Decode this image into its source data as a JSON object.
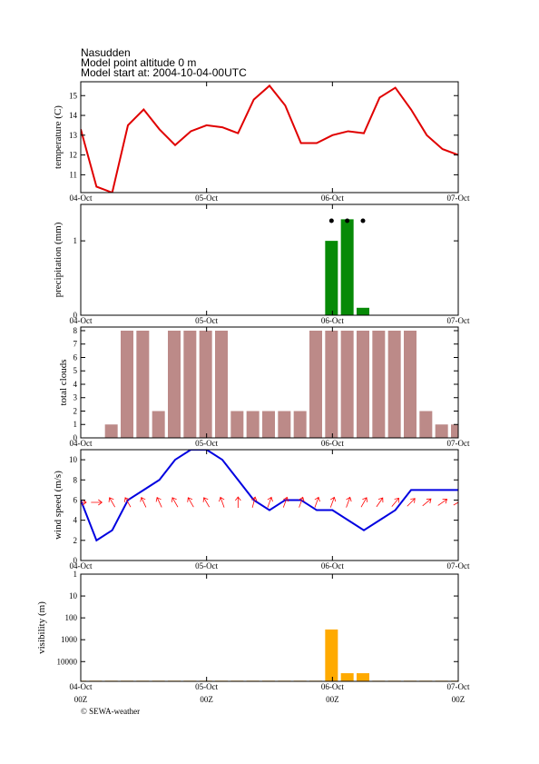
{
  "header": {
    "location": "Nasudden",
    "altitude": "Model point altitude  0 m",
    "model_start": "Model start at: 2004-10-04-00UTC"
  },
  "footer": {
    "hour_labels": [
      "00Z",
      "00Z",
      "00Z",
      "00Z"
    ],
    "copyright": "© SEWA-weather"
  },
  "chart_data": [
    {
      "type": "line",
      "ylabel": "temperature (C)",
      "color": "#e00000",
      "x": [
        0,
        3,
        6,
        9,
        12,
        15,
        18,
        21,
        24,
        27,
        30,
        33,
        36,
        39,
        42,
        45,
        48,
        51,
        54,
        57,
        60,
        63,
        66,
        69,
        72
      ],
      "values": [
        13.3,
        10.4,
        10.1,
        13.5,
        14.3,
        13.3,
        12.5,
        13.2,
        13.5,
        13.4,
        13.1,
        14.8,
        15.5,
        14.5,
        12.6,
        12.6,
        13.0,
        13.2,
        13.1,
        14.9,
        15.4,
        14.3,
        13.0,
        12.3,
        12.0
      ],
      "xlim": [
        0,
        72
      ],
      "xticks": [
        {
          "value": 0,
          "label": "04-Oct"
        },
        {
          "value": 24,
          "label": "05-Oct"
        },
        {
          "value": 48,
          "label": "06-Oct"
        },
        {
          "value": 72,
          "label": "07-Oct"
        }
      ],
      "ylim": [
        10.1,
        15.7
      ],
      "yticks": [
        11,
        12,
        13,
        14,
        15
      ]
    },
    {
      "type": "bar",
      "ylabel": "precipitation (mm)",
      "color": "#078a07",
      "x": [
        0,
        3,
        6,
        9,
        12,
        15,
        18,
        21,
        24,
        27,
        30,
        33,
        36,
        39,
        42,
        45,
        48,
        51,
        54,
        57,
        60,
        63,
        66,
        69,
        72
      ],
      "values": [
        0,
        0,
        0,
        0,
        0,
        0,
        0,
        0,
        0,
        0,
        0,
        0,
        0,
        0,
        0,
        0,
        1.0,
        1.29,
        0.1,
        0,
        0,
        0,
        0,
        0,
        0
      ],
      "xlim": [
        0,
        72
      ],
      "xticks": [
        {
          "value": 0,
          "label": "04-Oct"
        },
        {
          "value": 24,
          "label": "05-Oct"
        },
        {
          "value": 48,
          "label": "06-Oct"
        },
        {
          "value": 72,
          "label": "07-Oct"
        }
      ],
      "ylim": [
        0,
        1.49
      ],
      "yticks": [
        0,
        1
      ]
    },
    {
      "type": "bar",
      "ylabel": "total clouds",
      "color": "#bc8a88",
      "x": [
        0,
        3,
        6,
        9,
        12,
        15,
        18,
        21,
        24,
        27,
        30,
        33,
        36,
        39,
        42,
        45,
        48,
        51,
        54,
        57,
        60,
        63,
        66,
        69,
        72
      ],
      "values": [
        0,
        0,
        1,
        8,
        8,
        2,
        8,
        8,
        8,
        8,
        2,
        2,
        2,
        2,
        2,
        8,
        8,
        8,
        8,
        8,
        8,
        8,
        2,
        1,
        1
      ],
      "xlim": [
        0,
        72
      ],
      "xticks": [
        {
          "value": 0,
          "label": "04-Oct"
        },
        {
          "value": 24,
          "label": "05-Oct"
        },
        {
          "value": 48,
          "label": "06-Oct"
        },
        {
          "value": 72,
          "label": "07-Oct"
        }
      ],
      "ylim": [
        0,
        8.27
      ],
      "yticks": [
        0,
        1,
        2,
        3,
        4,
        5,
        6,
        7,
        8
      ]
    },
    {
      "type": "line",
      "ylabel": "wind speed (m/s)",
      "color": "#0000e0",
      "arrow_color": "#ff0000",
      "x": [
        0,
        3,
        6,
        9,
        12,
        15,
        18,
        21,
        24,
        27,
        30,
        33,
        36,
        39,
        42,
        45,
        48,
        51,
        54,
        57,
        60,
        63,
        66,
        69,
        72
      ],
      "values": [
        6,
        2,
        3,
        6,
        7,
        8,
        10,
        11,
        11,
        10,
        8,
        6,
        5,
        6,
        6,
        5,
        5,
        4,
        3,
        4,
        5,
        7,
        7,
        7,
        7
      ],
      "wind_direction": [
        270,
        270,
        150,
        150,
        155,
        155,
        150,
        150,
        150,
        160,
        180,
        195,
        200,
        200,
        200,
        200,
        200,
        200,
        210,
        215,
        220,
        225,
        230,
        235,
        240
      ],
      "xlim": [
        0,
        72
      ],
      "xticks": [
        {
          "value": 0,
          "label": "04-Oct"
        },
        {
          "value": 24,
          "label": "05-Oct"
        },
        {
          "value": 48,
          "label": "06-Oct"
        },
        {
          "value": 72,
          "label": "07-Oct"
        }
      ],
      "ylim": [
        0,
        11
      ],
      "yticks": [
        0,
        2,
        4,
        6,
        8,
        10
      ]
    },
    {
      "type": "bar",
      "ylabel": "visibility (m)",
      "color": "#ffaa00",
      "yscale": "log",
      "x": [
        0,
        3,
        6,
        9,
        12,
        15,
        18,
        21,
        24,
        27,
        30,
        33,
        36,
        39,
        42,
        45,
        48,
        51,
        54,
        57,
        60,
        63,
        66,
        69,
        72
      ],
      "values": [
        75000,
        75000,
        75000,
        75000,
        75000,
        75000,
        75000,
        75000,
        75000,
        75000,
        75000,
        75000,
        75000,
        75000,
        75000,
        75000,
        340,
        34000,
        34000,
        75000,
        75000,
        75000,
        75000,
        75000,
        75000
      ],
      "xlim": [
        0,
        72
      ],
      "xticks": [
        {
          "value": 0,
          "label": "04-Oct"
        },
        {
          "value": 24,
          "label": "05-Oct"
        },
        {
          "value": 48,
          "label": "06-Oct"
        },
        {
          "value": 72,
          "label": "07-Oct"
        }
      ],
      "ylim": [
        80000,
        1
      ],
      "yticks": [
        1,
        10,
        100,
        1000,
        10000
      ]
    }
  ]
}
